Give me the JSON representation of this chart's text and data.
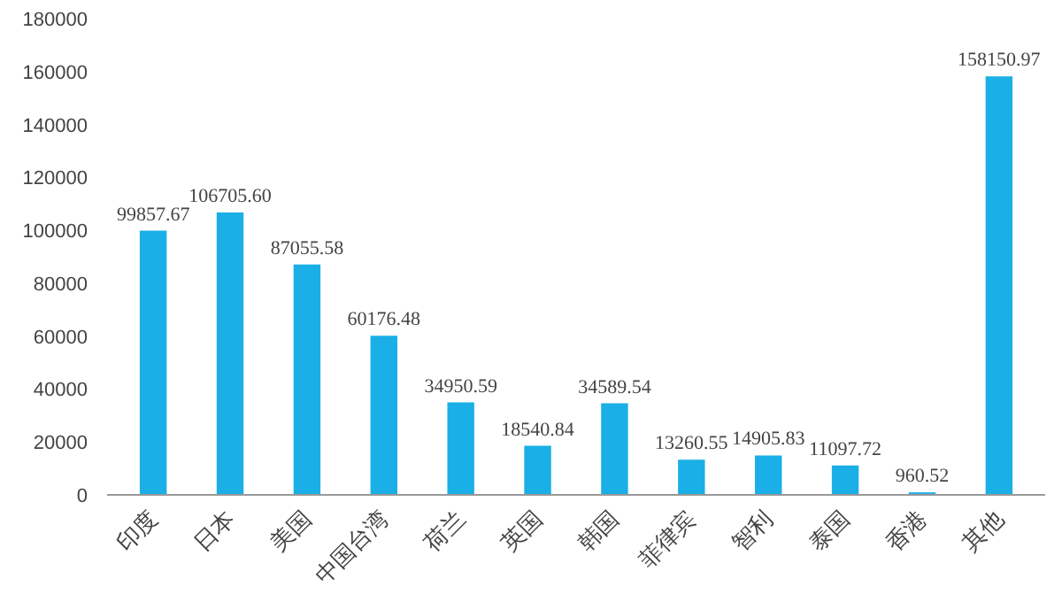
{
  "chart_data": {
    "type": "bar",
    "categories": [
      "印度",
      "日本",
      "美国",
      "中国台湾",
      "荷兰",
      "英国",
      "韩国",
      "菲律宾",
      "智利",
      "泰国",
      "香港",
      "其他"
    ],
    "values": [
      99857.67,
      106705.6,
      87055.58,
      60176.48,
      34950.59,
      18540.84,
      34589.54,
      13260.55,
      14905.83,
      11097.72,
      960.52,
      158150.97
    ],
    "value_labels": [
      "99857.67",
      "106705.60",
      "87055.58",
      "60176.48",
      "34950.59",
      "18540.84",
      "34589.54",
      "13260.55",
      "14905.83",
      "11097.72",
      "960.52",
      "158150.97"
    ],
    "color": "#1aafe6",
    "ylim": [
      0,
      180000
    ],
    "yticks": [
      0,
      20000,
      40000,
      60000,
      80000,
      100000,
      120000,
      140000,
      160000,
      180000
    ],
    "grid": false
  }
}
